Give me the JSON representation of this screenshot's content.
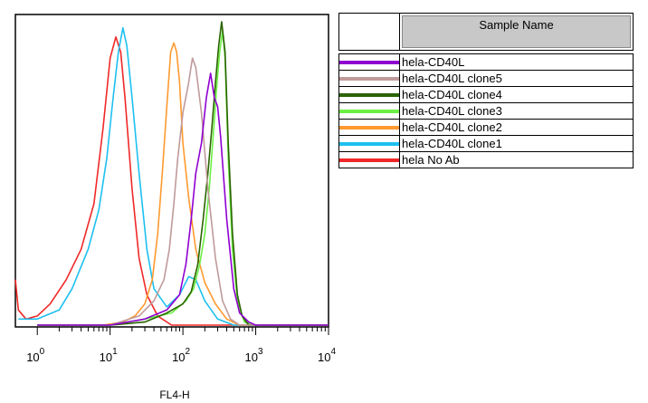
{
  "chart_data": {
    "type": "line",
    "xscale": "log",
    "xlim": [
      0.5,
      10000
    ],
    "ylim": [
      0,
      1
    ],
    "xlabel": "FL4-H",
    "xticks": [
      {
        "base": "10",
        "exp": "0",
        "value": 1
      },
      {
        "base": "10",
        "exp": "1",
        "value": 10
      },
      {
        "base": "10",
        "exp": "2",
        "value": 100
      },
      {
        "base": "10",
        "exp": "3",
        "value": 1000
      },
      {
        "base": "10",
        "exp": "4",
        "value": 10000
      }
    ],
    "legend_header": "Sample Name",
    "series": [
      {
        "name": "hela-CD40L",
        "color": "#8f00d0",
        "points": [
          [
            1,
            0
          ],
          [
            10,
            0
          ],
          [
            30,
            0.02
          ],
          [
            60,
            0.05
          ],
          [
            90,
            0.1
          ],
          [
            110,
            0.2
          ],
          [
            130,
            0.35
          ],
          [
            150,
            0.5
          ],
          [
            180,
            0.6
          ],
          [
            210,
            0.75
          ],
          [
            240,
            0.83
          ],
          [
            270,
            0.75
          ],
          [
            300,
            0.72
          ],
          [
            330,
            0.62
          ],
          [
            400,
            0.35
          ],
          [
            500,
            0.12
          ],
          [
            600,
            0.04
          ],
          [
            800,
            0.01
          ],
          [
            1000,
            0
          ],
          [
            10000,
            0
          ]
        ]
      },
      {
        "name": "hela-CD40L clone5",
        "color": "#c09a9a",
        "points": [
          [
            1,
            0
          ],
          [
            10,
            0
          ],
          [
            25,
            0.03
          ],
          [
            40,
            0.08
          ],
          [
            55,
            0.15
          ],
          [
            65,
            0.25
          ],
          [
            75,
            0.4
          ],
          [
            85,
            0.55
          ],
          [
            100,
            0.7
          ],
          [
            120,
            0.8
          ],
          [
            135,
            0.88
          ],
          [
            150,
            0.85
          ],
          [
            180,
            0.7
          ],
          [
            220,
            0.45
          ],
          [
            280,
            0.22
          ],
          [
            350,
            0.08
          ],
          [
            450,
            0.02
          ],
          [
            600,
            0
          ],
          [
            10000,
            0
          ]
        ]
      },
      {
        "name": "hela-CD40L clone4",
        "color": "#2a6400",
        "points": [
          [
            1,
            0
          ],
          [
            10,
            0
          ],
          [
            30,
            0.01
          ],
          [
            60,
            0.04
          ],
          [
            100,
            0.07
          ],
          [
            130,
            0.11
          ],
          [
            160,
            0.2
          ],
          [
            190,
            0.35
          ],
          [
            220,
            0.5
          ],
          [
            250,
            0.65
          ],
          [
            280,
            0.8
          ],
          [
            310,
            0.92
          ],
          [
            340,
            1.0
          ],
          [
            380,
            0.9
          ],
          [
            420,
            0.6
          ],
          [
            480,
            0.3
          ],
          [
            560,
            0.1
          ],
          [
            650,
            0.03
          ],
          [
            800,
            0
          ],
          [
            10000,
            0
          ]
        ]
      },
      {
        "name": "hela-CD40L clone3",
        "color": "#6cf044",
        "points": [
          [
            1,
            0
          ],
          [
            10,
            0
          ],
          [
            30,
            0.02
          ],
          [
            70,
            0.04
          ],
          [
            110,
            0.08
          ],
          [
            140,
            0.12
          ],
          [
            170,
            0.2
          ],
          [
            200,
            0.3
          ],
          [
            230,
            0.45
          ],
          [
            260,
            0.62
          ],
          [
            290,
            0.78
          ],
          [
            320,
            0.9
          ],
          [
            350,
            0.97
          ],
          [
            380,
            0.88
          ],
          [
            420,
            0.55
          ],
          [
            480,
            0.25
          ],
          [
            560,
            0.08
          ],
          [
            700,
            0.01
          ],
          [
            900,
            0
          ],
          [
            10000,
            0
          ]
        ]
      },
      {
        "name": "hela-CD40L clone2",
        "color": "#ff9a30",
        "points": [
          [
            1,
            0
          ],
          [
            8,
            0
          ],
          [
            15,
            0.01
          ],
          [
            22,
            0.03
          ],
          [
            30,
            0.07
          ],
          [
            38,
            0.15
          ],
          [
            45,
            0.3
          ],
          [
            52,
            0.5
          ],
          [
            60,
            0.72
          ],
          [
            68,
            0.9
          ],
          [
            75,
            0.93
          ],
          [
            82,
            0.9
          ],
          [
            90,
            0.8
          ],
          [
            100,
            0.6
          ],
          [
            120,
            0.42
          ],
          [
            150,
            0.25
          ],
          [
            200,
            0.14
          ],
          [
            280,
            0.07
          ],
          [
            400,
            0.02
          ],
          [
            600,
            0
          ],
          [
            10000,
            0
          ]
        ]
      },
      {
        "name": "hela-CD40L clone1",
        "color": "#1ec0f0",
        "points": [
          [
            0.55,
            0.02
          ],
          [
            1,
            0.02
          ],
          [
            2,
            0.05
          ],
          [
            3,
            0.12
          ],
          [
            5,
            0.25
          ],
          [
            7,
            0.38
          ],
          [
            9,
            0.55
          ],
          [
            11,
            0.75
          ],
          [
            13,
            0.9
          ],
          [
            15,
            0.98
          ],
          [
            17,
            0.92
          ],
          [
            20,
            0.75
          ],
          [
            25,
            0.5
          ],
          [
            32,
            0.25
          ],
          [
            40,
            0.12
          ],
          [
            60,
            0.06
          ],
          [
            90,
            0.1
          ],
          [
            120,
            0.16
          ],
          [
            150,
            0.15
          ],
          [
            200,
            0.08
          ],
          [
            300,
            0.02
          ],
          [
            500,
            0
          ],
          [
            10000,
            0
          ]
        ]
      },
      {
        "name": "hela No Ab",
        "color": "#f02828",
        "points": [
          [
            0.5,
            0.15
          ],
          [
            0.55,
            0.05
          ],
          [
            0.7,
            0.02
          ],
          [
            1,
            0.03
          ],
          [
            1.5,
            0.07
          ],
          [
            2.5,
            0.15
          ],
          [
            4,
            0.25
          ],
          [
            6,
            0.4
          ],
          [
            8,
            0.65
          ],
          [
            10,
            0.88
          ],
          [
            12,
            0.95
          ],
          [
            14,
            0.9
          ],
          [
            16,
            0.75
          ],
          [
            20,
            0.45
          ],
          [
            25,
            0.22
          ],
          [
            32,
            0.1
          ],
          [
            45,
            0.03
          ],
          [
            70,
            0
          ],
          [
            10000,
            0
          ]
        ]
      }
    ]
  }
}
